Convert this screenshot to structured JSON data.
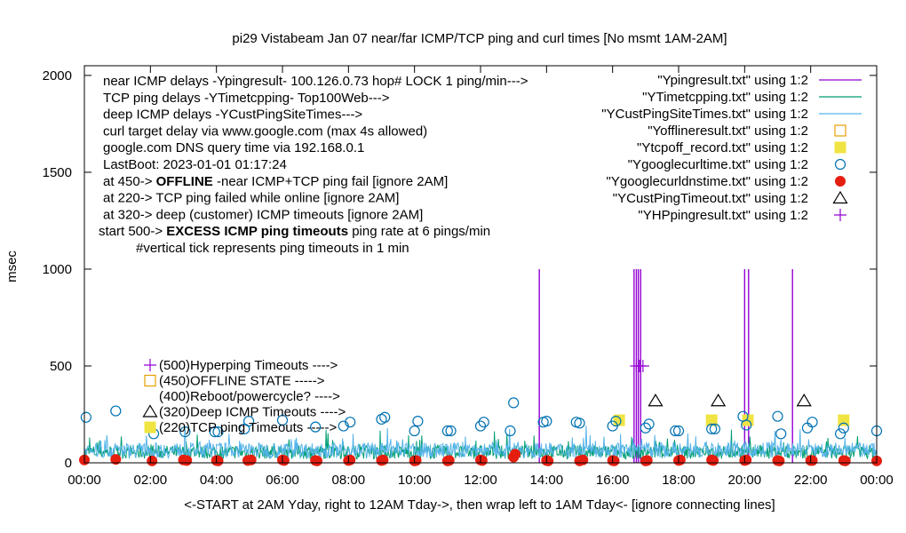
{
  "chart_data": {
    "type": "line",
    "title": "pi29 Vistabeam Jan 07  near/far ICMP/TCP ping and curl times [No msmt 1AM-2AM]",
    "ylabel": "msec",
    "xlabel": "<-START at 2AM Yday, right to 12AM Tday->, then wrap left to 1AM Tday<- [ignore connecting lines]",
    "xlim": [
      0,
      24
    ],
    "ylim": [
      0,
      2050
    ],
    "x_ticks": [
      "00:00",
      "02:00",
      "04:00",
      "06:00",
      "08:00",
      "10:00",
      "12:00",
      "14:00",
      "16:00",
      "18:00",
      "20:00",
      "22:00",
      "00:00"
    ],
    "y_ticks": [
      0,
      500,
      1000,
      1500,
      2000
    ],
    "notes": [
      {
        "text": "near ICMP delays -Ypingresult- 100.126.0.73 hop# LOCK 1 ping/min--->",
        "bold": ""
      },
      {
        "text": "TCP ping delays -YTimetcpping- Top100Web--->",
        "bold": ""
      },
      {
        "text": "deep ICMP delays -YCustPingSiteTimes--->",
        "bold": ""
      },
      {
        "text": "curl target delay via www.google.com (max 4s allowed)",
        "bold": ""
      },
      {
        "text": "google.com DNS query time via 192.168.0.1",
        "bold": ""
      },
      {
        "text": "LastBoot: 2023-01-01 01:17:24",
        "bold": ""
      },
      {
        "pre": "at 450-> ",
        "bold": "OFFLINE",
        "post": " -near ICMP+TCP ping fail [ignore 2AM]"
      },
      {
        "text": "at 220-> TCP ping failed while online [ignore 2AM]",
        "bold": ""
      },
      {
        "text": "at 320-> deep (customer) ICMP timeouts [ignore 2AM]",
        "bold": ""
      },
      {
        "pre": "start 500-> ",
        "bold": "EXCESS ICMP ping timeouts",
        "post": "  ping rate at 6 pings/min"
      },
      {
        "text": "#vertical tick represents ping timeouts in 1 min",
        "bold": ""
      }
    ],
    "legend_position": "top-right",
    "legend": [
      {
        "label": "\"Ypingresult.txt\" using 1:2",
        "style": "line",
        "color": "#9400d3"
      },
      {
        "label": "\"YTimetcpping.txt\" using 1:2",
        "style": "line",
        "color": "#009e73"
      },
      {
        "label": "\"YCustPingSiteTimes.txt\" using 1:2",
        "style": "line",
        "color": "#56b4e9"
      },
      {
        "label": "\"Yofflineresult.txt\" using 1:2",
        "style": "open-square",
        "color": "#e69f00"
      },
      {
        "label": "\"Ytcpoff_record.txt\" using 1:2",
        "style": "filled-square",
        "color": "#f0e442"
      },
      {
        "label": "\"Ygooglecurltime.txt\" using 1:2",
        "style": "open-circle",
        "color": "#0072b2"
      },
      {
        "label": "\"Ygooglecurldnstime.txt\" using 1:2",
        "style": "filled-circle",
        "color": "#e51e10"
      },
      {
        "label": "\"YCustPingTimeout.txt\" using 1:2",
        "style": "open-triangle",
        "color": "#000000"
      },
      {
        "label": "\"YHPpingresult.txt\" using 1:2",
        "style": "plus",
        "color": "#9400d3"
      }
    ],
    "key_annotations": [
      {
        "label": "(500)Hyperping Timeouts ---->",
        "value": 500,
        "symbol": "plus",
        "color": "#9400d3"
      },
      {
        "label": "(450)OFFLINE STATE ----->",
        "value": 450,
        "symbol": "open-square",
        "color": "#e69f00"
      },
      {
        "label": "(400)Reboot/powercycle? ---->",
        "value": 400,
        "symbol": "none",
        "color": "#000000"
      },
      {
        "label": "(320)Deep ICMP Timeouts ---->",
        "value": 320,
        "symbol": "open-triangle",
        "color": "#000000"
      },
      {
        "label": "(220)TCP ping Timeouts ----->",
        "value": 220,
        "symbol": "filled-square",
        "color": "#f0e442"
      }
    ],
    "series": [
      {
        "name": "\"Ypingresult.txt\" using 1:2",
        "kind": "spikes",
        "color": "#9400d3",
        "points": [
          [
            13.78,
            1000
          ],
          [
            16.65,
            1000
          ],
          [
            16.72,
            1000
          ],
          [
            16.78,
            1000
          ],
          [
            16.85,
            1000
          ],
          [
            20.0,
            1000
          ],
          [
            20.12,
            1000
          ],
          [
            21.45,
            1000
          ]
        ]
      },
      {
        "name": "\"YTimetcpping.txt\" using 1:2",
        "kind": "noise",
        "color": "#009e73",
        "base": 20,
        "amp": 70
      },
      {
        "name": "\"YCustPingSiteTimes.txt\" using 1:2",
        "kind": "noise",
        "color": "#56b4e9",
        "base": 25,
        "amp": 80
      },
      {
        "name": "\"Ytcpoff_record.txt\" using 1:2",
        "kind": "markers",
        "marker": "filled-square",
        "color": "#f0e442",
        "points": [
          [
            16.2,
            220
          ],
          [
            19.0,
            220
          ],
          [
            20.1,
            220
          ],
          [
            23.0,
            220
          ]
        ]
      },
      {
        "name": "\"Ygooglecurltime.txt\" using 1:2",
        "kind": "markers",
        "marker": "open-circle",
        "color": "#0072b2",
        "points": [
          [
            0.05,
            235
          ],
          [
            0.95,
            268
          ],
          [
            2.1,
            150
          ],
          [
            3.05,
            160
          ],
          [
            3.95,
            160
          ],
          [
            4.05,
            160
          ],
          [
            4.85,
            175
          ],
          [
            4.98,
            215
          ],
          [
            6.0,
            220
          ],
          [
            7.0,
            185
          ],
          [
            7.85,
            190
          ],
          [
            8.05,
            210
          ],
          [
            9.0,
            225
          ],
          [
            9.1,
            235
          ],
          [
            10.0,
            165
          ],
          [
            10.1,
            215
          ],
          [
            11.0,
            165
          ],
          [
            11.1,
            165
          ],
          [
            12.0,
            190
          ],
          [
            12.1,
            210
          ],
          [
            12.9,
            165
          ],
          [
            13.0,
            310
          ],
          [
            13.9,
            210
          ],
          [
            14.0,
            215
          ],
          [
            14.9,
            210
          ],
          [
            15.0,
            205
          ],
          [
            16.0,
            190
          ],
          [
            16.1,
            215
          ],
          [
            17.0,
            180
          ],
          [
            17.1,
            200
          ],
          [
            17.9,
            165
          ],
          [
            18.0,
            165
          ],
          [
            19.0,
            175
          ],
          [
            19.1,
            175
          ],
          [
            19.95,
            240
          ],
          [
            20.05,
            195
          ],
          [
            21.0,
            240
          ],
          [
            21.1,
            150
          ],
          [
            21.9,
            180
          ],
          [
            22.05,
            210
          ],
          [
            22.9,
            150
          ],
          [
            23.0,
            180
          ],
          [
            24.0,
            165
          ]
        ]
      },
      {
        "name": "\"Ygooglecurldnstime.txt\" using 1:2",
        "kind": "markers",
        "marker": "filled-circle",
        "color": "#e51e10",
        "points": [
          [
            0.0,
            15
          ],
          [
            0.95,
            18
          ],
          [
            2.05,
            10
          ],
          [
            3.0,
            15
          ],
          [
            3.1,
            12
          ],
          [
            4.0,
            12
          ],
          [
            4.05,
            10
          ],
          [
            4.95,
            12
          ],
          [
            5.05,
            15
          ],
          [
            6.0,
            15
          ],
          [
            6.05,
            12
          ],
          [
            7.0,
            12
          ],
          [
            7.05,
            10
          ],
          [
            8.0,
            12
          ],
          [
            8.05,
            15
          ],
          [
            9.0,
            12
          ],
          [
            9.05,
            15
          ],
          [
            10.0,
            10
          ],
          [
            10.05,
            12
          ],
          [
            11.0,
            10
          ],
          [
            11.05,
            12
          ],
          [
            12.0,
            15
          ],
          [
            12.05,
            12
          ],
          [
            13.0,
            30
          ],
          [
            13.05,
            45
          ],
          [
            14.0,
            12
          ],
          [
            14.05,
            10
          ],
          [
            15.0,
            10
          ],
          [
            15.1,
            15
          ],
          [
            16.0,
            12
          ],
          [
            16.05,
            10
          ],
          [
            17.0,
            10
          ],
          [
            17.05,
            12
          ],
          [
            18.0,
            12
          ],
          [
            18.05,
            15
          ],
          [
            19.0,
            15
          ],
          [
            19.05,
            12
          ],
          [
            20.0,
            12
          ],
          [
            20.05,
            15
          ],
          [
            21.0,
            12
          ],
          [
            21.05,
            10
          ],
          [
            22.0,
            12
          ],
          [
            22.05,
            12
          ],
          [
            23.0,
            12
          ],
          [
            23.05,
            10
          ],
          [
            24.0,
            10
          ]
        ]
      },
      {
        "name": "\"YCustPingTimeout.txt\" using 1:2",
        "kind": "markers",
        "marker": "open-triangle",
        "color": "#000000",
        "points": [
          [
            17.3,
            320
          ],
          [
            19.2,
            320
          ],
          [
            21.8,
            320
          ]
        ]
      },
      {
        "name": "\"YHPpingresult.txt\" using 1:2",
        "kind": "markers",
        "marker": "plus",
        "color": "#9400d3",
        "points": [
          [
            16.72,
            500
          ],
          [
            16.82,
            500
          ],
          [
            16.92,
            500
          ]
        ]
      }
    ]
  }
}
